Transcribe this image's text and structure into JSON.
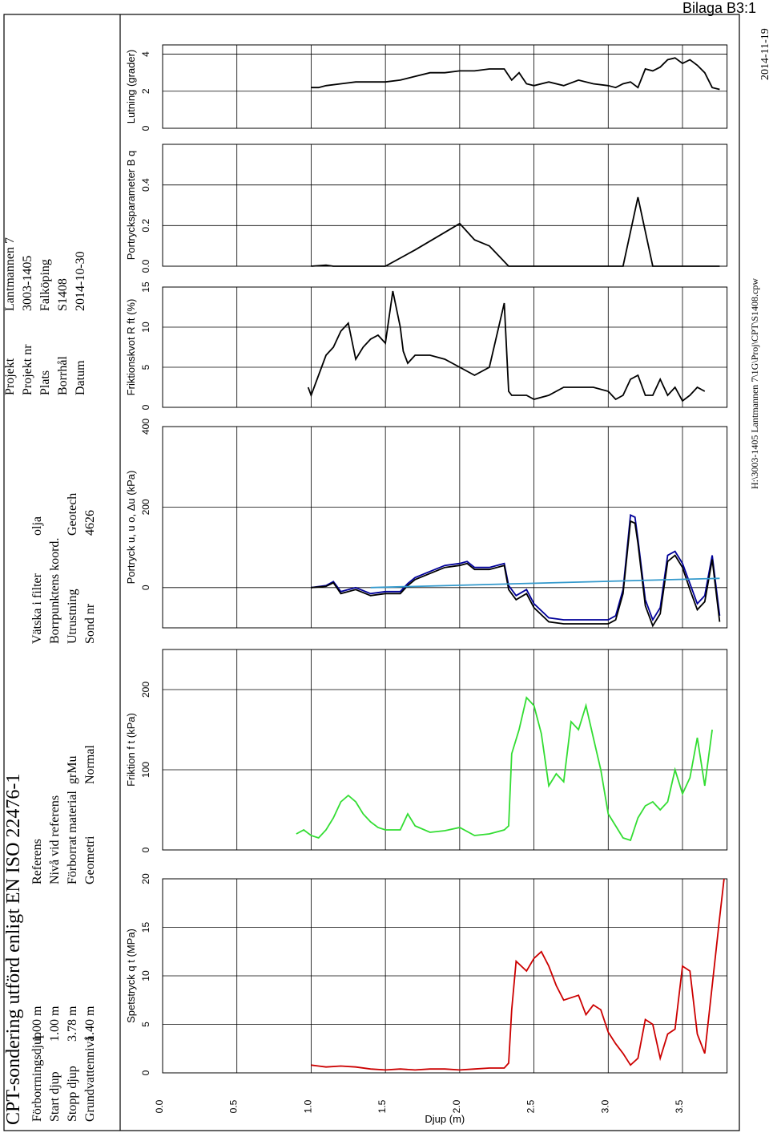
{
  "header": {
    "title": "CPT-sondering utförd enligt EN ISO 22476-1",
    "stamp": "Bilaga B3:1",
    "file_path": "H:\\3003-1405 Lantmannen 7\\1G\\Proj\\CPT\\S1408.cpw",
    "print_date": "2014-11-19",
    "col1": [
      {
        "k": "Förborrningsdjup",
        "v": "1.00 m"
      },
      {
        "k": "Start djup",
        "v": "1.00 m"
      },
      {
        "k": "Stopp djup",
        "v": "3.78 m"
      },
      {
        "k": "Grundvattennivå",
        "v": "1.40 m"
      }
    ],
    "col2": [
      {
        "k": "Referens",
        "v": ""
      },
      {
        "k": "Nivå vid referens",
        "v": ""
      },
      {
        "k": "Förborrat material",
        "v": "grMu"
      },
      {
        "k": "Geometri",
        "v": "Normal"
      }
    ],
    "col3": [
      {
        "k": "Vätska i filter",
        "v": "olja"
      },
      {
        "k": "Borrpunktens koord.",
        "v": ""
      },
      {
        "k": "Utrustning",
        "v": "Geotech"
      },
      {
        "k": "Sond nr",
        "v": "4626"
      }
    ],
    "col4": [
      {
        "k": "Projekt",
        "v": "Lantmannen 7"
      },
      {
        "k": "Projekt nr",
        "v": "3003-1405"
      },
      {
        "k": "Plats",
        "v": "Falköping"
      },
      {
        "k": "Borrhål",
        "v": "S1408"
      },
      {
        "k": "Datum",
        "v": "2014-10-30"
      }
    ]
  },
  "chart_data": {
    "type": "line",
    "depth_axis": {
      "label": "Djup  (m)",
      "range": [
        0.0,
        3.8
      ],
      "ticks": [
        "0.0",
        "0.5",
        "1.0",
        "1.5",
        "2.0",
        "2.5",
        "3.0",
        "3.5"
      ]
    },
    "panels": [
      {
        "id": "qt",
        "label": "Spetstryck q",
        "sub": "t",
        "unit": "(MPa)",
        "range": [
          0,
          20
        ],
        "ticks": [
          "0",
          "5",
          "10",
          "15",
          "20"
        ],
        "color": "#cc0000",
        "series": [
          {
            "depth": [
              1.0,
              1.05,
              1.1,
              1.2,
              1.3,
              1.4,
              1.5,
              1.6,
              1.7,
              1.8,
              1.9,
              2.0,
              2.1,
              2.2,
              2.3,
              2.33,
              2.35,
              2.38,
              2.45,
              2.5,
              2.55,
              2.6,
              2.65,
              2.7,
              2.8,
              2.85,
              2.9,
              2.95,
              3.0,
              3.05,
              3.1,
              3.15,
              3.2,
              3.25,
              3.3,
              3.35,
              3.4,
              3.45,
              3.5,
              3.55,
              3.6,
              3.65,
              3.7,
              3.75,
              3.78
            ],
            "values": [
              0.8,
              0.7,
              0.6,
              0.7,
              0.6,
              0.4,
              0.3,
              0.4,
              0.3,
              0.4,
              0.4,
              0.3,
              0.4,
              0.5,
              0.5,
              1.0,
              6.5,
              11.5,
              10.5,
              11.8,
              12.5,
              11.0,
              9.0,
              7.5,
              8.0,
              6.0,
              7.0,
              6.5,
              4.2,
              3.0,
              2.0,
              0.8,
              1.5,
              5.5,
              5.0,
              1.5,
              4.0,
              4.5,
              11.0,
              10.5,
              4.0,
              2.0,
              9.0,
              16.0,
              20.0
            ]
          }
        ]
      },
      {
        "id": "ft",
        "label": "Friktion f",
        "sub": "t",
        "unit": "(kPa)",
        "range": [
          0,
          250
        ],
        "ticks": [
          "0",
          "100",
          "200"
        ],
        "color": "#33dd33",
        "series": [
          {
            "depth": [
              0.9,
              0.95,
              1.0,
              1.05,
              1.1,
              1.15,
              1.2,
              1.25,
              1.3,
              1.35,
              1.4,
              1.45,
              1.5,
              1.55,
              1.6,
              1.65,
              1.7,
              1.8,
              1.9,
              2.0,
              2.1,
              2.2,
              2.3,
              2.33,
              2.35,
              2.4,
              2.45,
              2.5,
              2.55,
              2.6,
              2.65,
              2.7,
              2.75,
              2.8,
              2.85,
              2.9,
              2.95,
              3.0,
              3.05,
              3.1,
              3.15,
              3.2,
              3.25,
              3.3,
              3.35,
              3.4,
              3.45,
              3.5,
              3.55,
              3.6,
              3.65,
              3.7
            ],
            "values": [
              20,
              25,
              18,
              15,
              25,
              40,
              60,
              68,
              60,
              45,
              35,
              28,
              25,
              25,
              25,
              45,
              30,
              22,
              24,
              28,
              18,
              20,
              25,
              30,
              120,
              150,
              190,
              180,
              145,
              80,
              95,
              85,
              160,
              150,
              180,
              140,
              100,
              45,
              30,
              15,
              12,
              40,
              55,
              60,
              50,
              60,
              100,
              70,
              90,
              140,
              80,
              150
            ]
          }
        ]
      },
      {
        "id": "u",
        "label": "Portryck u, u",
        "sub": "o",
        "unit": "(kPa)",
        "extra": ", Δu",
        "range": [
          -100,
          400
        ],
        "ticks": [
          "0",
          "200",
          "400"
        ],
        "series": [
          {
            "name": "u",
            "color": "#000099",
            "depth": [
              1.0,
              1.1,
              1.15,
              1.2,
              1.3,
              1.4,
              1.5,
              1.6,
              1.65,
              1.7,
              1.8,
              1.9,
              2.0,
              2.05,
              2.1,
              2.2,
              2.3,
              2.33,
              2.38,
              2.45,
              2.5,
              2.6,
              2.7,
              2.8,
              2.9,
              3.0,
              3.05,
              3.1,
              3.15,
              3.18,
              3.2,
              3.25,
              3.3,
              3.35,
              3.4,
              3.45,
              3.5,
              3.55,
              3.6,
              3.65,
              3.7,
              3.75
            ],
            "values": [
              0,
              5,
              15,
              -10,
              0,
              -15,
              -10,
              -10,
              10,
              25,
              40,
              55,
              60,
              65,
              50,
              50,
              60,
              5,
              -20,
              -5,
              -40,
              -75,
              -80,
              -80,
              -80,
              -80,
              -70,
              -5,
              180,
              175,
              120,
              -30,
              -80,
              -50,
              80,
              90,
              60,
              10,
              -40,
              -20,
              80,
              -70
            ]
          },
          {
            "name": "Δu",
            "color": "#000000",
            "depth": [
              1.0,
              1.1,
              1.15,
              1.2,
              1.3,
              1.4,
              1.5,
              1.6,
              1.65,
              1.7,
              1.8,
              1.9,
              2.0,
              2.05,
              2.1,
              2.2,
              2.3,
              2.33,
              2.38,
              2.45,
              2.5,
              2.6,
              2.7,
              2.8,
              2.9,
              3.0,
              3.05,
              3.1,
              3.15,
              3.18,
              3.2,
              3.25,
              3.3,
              3.35,
              3.4,
              3.45,
              3.5,
              3.55,
              3.6,
              3.65,
              3.7,
              3.75
            ],
            "values": [
              0,
              3,
              12,
              -15,
              -5,
              -20,
              -15,
              -15,
              5,
              20,
              35,
              50,
              55,
              60,
              45,
              45,
              55,
              -5,
              -30,
              -15,
              -50,
              -85,
              -90,
              -90,
              -90,
              -90,
              -80,
              -15,
              165,
              160,
              110,
              -45,
              -95,
              -65,
              65,
              80,
              50,
              -5,
              -55,
              -35,
              70,
              -85
            ]
          },
          {
            "name": "uo",
            "color": "#3399cc",
            "depth": [
              1.4,
              3.75
            ],
            "values": [
              0,
              23
            ]
          }
        ]
      },
      {
        "id": "rf",
        "label": "Friktionskvot R",
        "sub": "ft",
        "unit": "(%)",
        "range": [
          0,
          15
        ],
        "ticks": [
          "0",
          "5",
          "10",
          "15"
        ],
        "color": "#000000",
        "series": [
          {
            "depth": [
              0.98,
              1.0,
              1.1,
              1.15,
              1.2,
              1.25,
              1.3,
              1.35,
              1.4,
              1.45,
              1.5,
              1.55,
              1.6,
              1.62,
              1.65,
              1.7,
              1.8,
              1.9,
              2.0,
              2.1,
              2.2,
              2.3,
              2.33,
              2.35,
              2.38,
              2.45,
              2.5,
              2.6,
              2.7,
              2.8,
              2.9,
              3.0,
              3.05,
              3.1,
              3.15,
              3.2,
              3.25,
              3.3,
              3.35,
              3.4,
              3.45,
              3.5,
              3.55,
              3.6,
              3.65
            ],
            "values": [
              2.5,
              1.5,
              6.5,
              7.5,
              9.5,
              10.5,
              6.0,
              7.5,
              8.5,
              9.0,
              8.0,
              14.5,
              10.0,
              7.0,
              5.5,
              6.5,
              6.5,
              6.0,
              5.0,
              4.0,
              5.0,
              13.0,
              2.0,
              1.5,
              1.5,
              1.5,
              1.0,
              1.5,
              2.5,
              2.5,
              2.5,
              2.0,
              1.0,
              1.5,
              3.5,
              4.0,
              1.5,
              1.5,
              3.5,
              1.5,
              2.5,
              0.8,
              1.5,
              2.5,
              2.0
            ]
          }
        ]
      },
      {
        "id": "bq",
        "label": "Portrycksparameter B",
        "sub": "q",
        "unit": "",
        "range": [
          0.0,
          0.6
        ],
        "ticks": [
          "0.0",
          "0.2",
          "0.4"
        ],
        "color": "#000000",
        "series": [
          {
            "depth": [
              1.0,
              1.1,
              1.15,
              1.5,
              1.7,
              2.0,
              2.1,
              2.2,
              2.33,
              2.5,
              3.0,
              3.1,
              3.2,
              3.3,
              3.5,
              3.75
            ],
            "values": [
              0.0,
              0.005,
              0.0,
              0.0,
              0.08,
              0.21,
              0.13,
              0.1,
              0.0,
              0.0,
              0.0,
              0.0,
              0.34,
              0.0,
              0.0,
              0.0
            ]
          }
        ]
      },
      {
        "id": "lut",
        "label": "Lutning (grader)",
        "sub": "",
        "unit": "",
        "range": [
          0,
          4.5
        ],
        "ticks": [
          "0",
          "2",
          "4"
        ],
        "color": "#000000",
        "series": [
          {
            "depth": [
              1.0,
              1.05,
              1.1,
              1.2,
              1.3,
              1.4,
              1.5,
              1.6,
              1.7,
              1.8,
              1.9,
              2.0,
              2.1,
              2.2,
              2.3,
              2.35,
              2.4,
              2.45,
              2.5,
              2.6,
              2.7,
              2.8,
              2.9,
              3.0,
              3.05,
              3.1,
              3.15,
              3.2,
              3.25,
              3.3,
              3.35,
              3.4,
              3.45,
              3.5,
              3.55,
              3.6,
              3.65,
              3.7,
              3.75
            ],
            "values": [
              2.2,
              2.2,
              2.3,
              2.4,
              2.5,
              2.5,
              2.5,
              2.6,
              2.8,
              3.0,
              3.0,
              3.1,
              3.1,
              3.2,
              3.2,
              2.6,
              3.0,
              2.4,
              2.3,
              2.5,
              2.3,
              2.6,
              2.4,
              2.3,
              2.2,
              2.4,
              2.5,
              2.2,
              3.2,
              3.1,
              3.3,
              3.7,
              3.8,
              3.5,
              3.7,
              3.4,
              3.0,
              2.2,
              2.1
            ]
          }
        ]
      }
    ],
    "annotations": [
      {
        "text": "u",
        "depth": 2.0
      },
      {
        "text": "uo",
        "depth": 1.5
      },
      {
        "text": "uo",
        "depth": 1.48
      },
      {
        "text": "uo",
        "depth": 2.2
      },
      {
        "text": "Δu",
        "depth": 2.5
      },
      {
        "text": "uo",
        "depth": 2.85
      },
      {
        "text": "Δu",
        "depth": 2.35
      },
      {
        "text": "u",
        "depth": 3.25
      },
      {
        "text": "Δu",
        "depth": 3.3
      },
      {
        "text": "Δu",
        "depth": 3.75
      }
    ]
  }
}
